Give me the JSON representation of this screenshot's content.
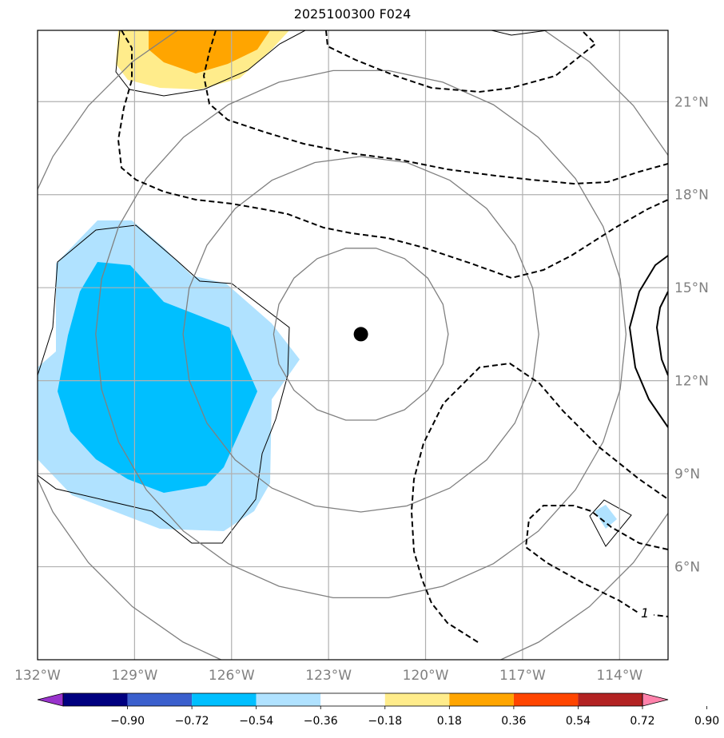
{
  "chart_data": {
    "type": "contour-map",
    "title": "2025100300 F024",
    "projection": "lat-lon",
    "lon_range": [
      -132,
      -112.5
    ],
    "lat_range": [
      3.0,
      23.3
    ],
    "x_ticks": [
      {
        "lon": -132,
        "label": "132°W"
      },
      {
        "lon": -129,
        "label": "129°W"
      },
      {
        "lon": -126,
        "label": "126°W"
      },
      {
        "lon": -123,
        "label": "123°W"
      },
      {
        "lon": -120,
        "label": "120°W"
      },
      {
        "lon": -117,
        "label": "117°W"
      },
      {
        "lon": -114,
        "label": "114°W"
      }
    ],
    "y_ticks": [
      {
        "lat": 6,
        "label": "6°N"
      },
      {
        "lat": 9,
        "label": "9°N"
      },
      {
        "lat": 12,
        "label": "12°N"
      },
      {
        "lat": 15,
        "label": "15°N"
      },
      {
        "lat": 18,
        "label": "18°N"
      },
      {
        "lat": 21,
        "label": "21°N"
      }
    ],
    "storm_center": {
      "lon": -122.0,
      "lat": 13.5
    },
    "range_rings_degrees": [
      2.7,
      5.5,
      8.2,
      11.0
    ],
    "contour_label": "1",
    "colorbar": {
      "levels": [
        "−0.90",
        "−0.72",
        "−0.54",
        "−0.36",
        "−0.18",
        "0.18",
        "0.36",
        "0.54",
        "0.72",
        "0.90"
      ],
      "colors": [
        "#9933cc",
        "#000080",
        "#3a5fcd",
        "#00bfff",
        "#b0e2ff",
        "#ffffff",
        "#ffec8b",
        "#ffa500",
        "#ff4500",
        "#b22222",
        "#ff82ab"
      ],
      "extend": "both"
    },
    "features": [
      {
        "name": "negative-anomaly-west",
        "levels": [
          "−0.36",
          "−0.18"
        ],
        "location": "127°W, 12°N"
      },
      {
        "name": "positive-anomaly-north",
        "levels": [
          "0.18",
          "0.54"
        ],
        "location": "127°W, 22.5°N"
      },
      {
        "name": "negative-anomaly-small",
        "levels": [
          "−0.18"
        ],
        "location": "114°W, 8°N"
      }
    ]
  }
}
